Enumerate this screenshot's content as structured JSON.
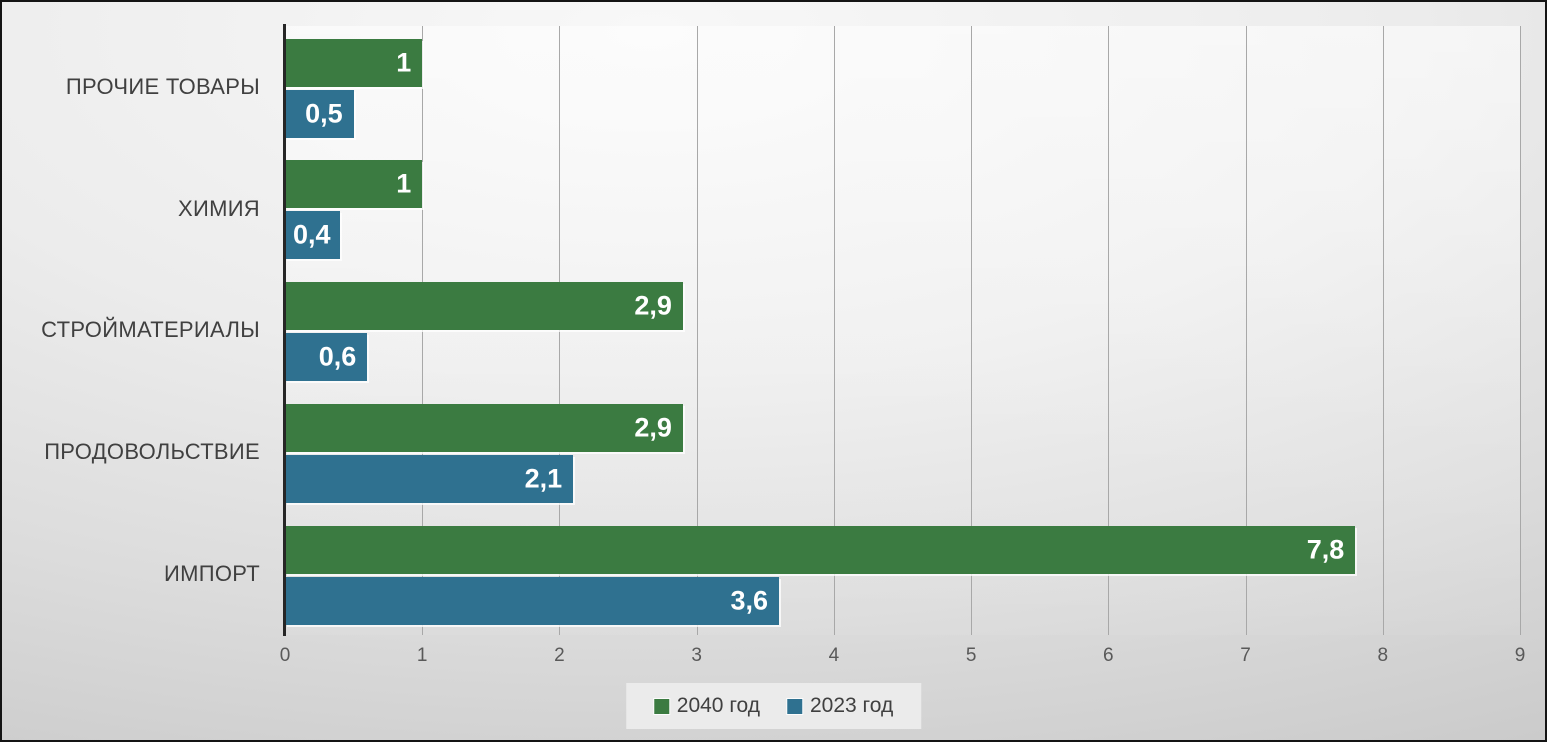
{
  "chart_data": {
    "type": "bar",
    "orientation": "horizontal",
    "title": "",
    "categories": [
      "ПРОЧИЕ ТОВАРЫ",
      "ХИМИЯ",
      "СТРОЙМАТЕРИАЛЫ",
      "ПРОДОВОЛЬСТВИЕ",
      "ИМПОРТ"
    ],
    "series": [
      {
        "name": "2040 год",
        "color": "#3B7B41",
        "values": [
          1,
          1,
          2.9,
          2.9,
          7.8
        ],
        "data_labels": [
          "1",
          "1",
          "2,9",
          "2,9",
          "7,8"
        ]
      },
      {
        "name": "2023 год",
        "color": "#2F7190",
        "values": [
          0.5,
          0.4,
          0.6,
          2.1,
          3.6
        ],
        "data_labels": [
          "0,5",
          "0,4",
          "0,6",
          "2,1",
          "3,6"
        ]
      }
    ],
    "xlim": [
      0,
      9
    ],
    "xticks": [
      "0",
      "1",
      "2",
      "3",
      "4",
      "5",
      "6",
      "7",
      "8",
      "9"
    ],
    "grid": true,
    "legend_position": "bottom-center",
    "value_label_color": "#FFFFFF"
  },
  "colors": {
    "series_2040": "#3B7B41",
    "series_2023": "#2F7190",
    "category_label": "#404040",
    "tick_label": "#595959",
    "gridline": "#A8A8A8",
    "axis_line": "#262626",
    "legend_bg": "#EBEBEB",
    "legend_text": "#404040"
  }
}
